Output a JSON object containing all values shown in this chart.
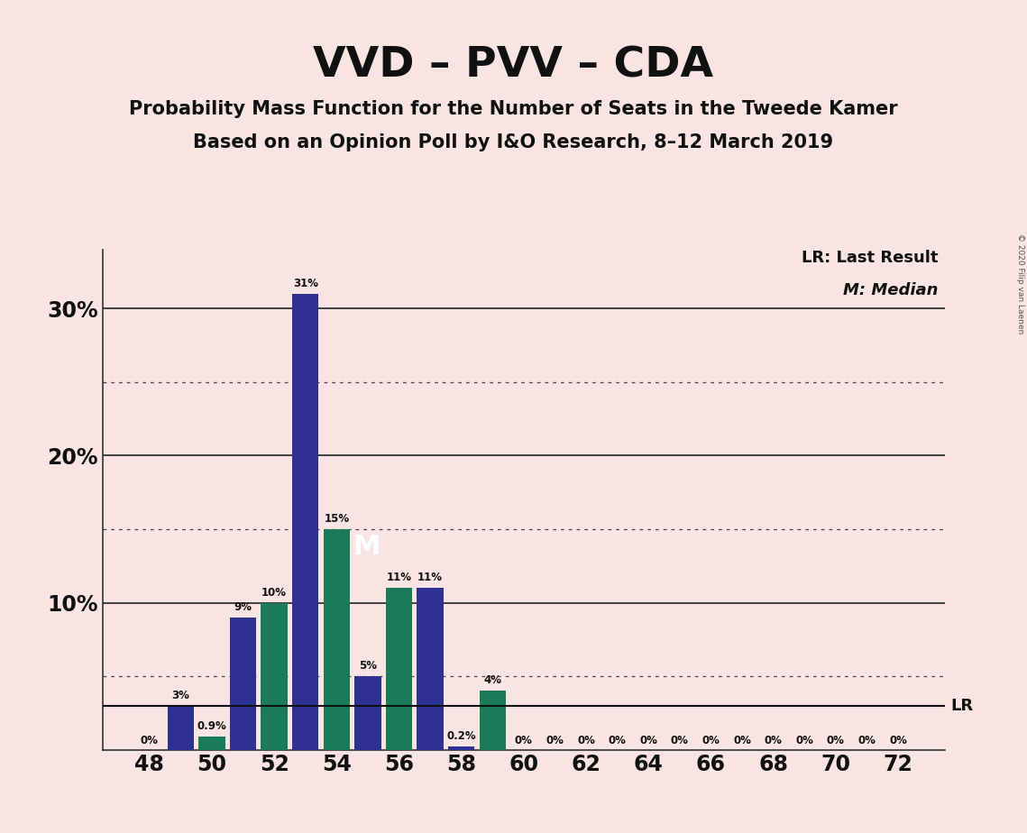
{
  "title": "VVD – PVV – CDA",
  "subtitle1": "Probability Mass Function for the Number of Seats in the Tweede Kamer",
  "subtitle2": "Based on an Opinion Poll by I&O Research, 8–12 March 2019",
  "copyright": "© 2020 Filip van Laenen",
  "background_color": "#f9e4e4",
  "bar_data": [
    {
      "seat": 48,
      "value": 0.0,
      "color": "#2e3191"
    },
    {
      "seat": 49,
      "value": 3.0,
      "color": "#2e3191"
    },
    {
      "seat": 50,
      "value": 0.9,
      "color": "#1b7a5a"
    },
    {
      "seat": 51,
      "value": 9.0,
      "color": "#2e3191"
    },
    {
      "seat": 52,
      "value": 10.0,
      "color": "#1b7a5a"
    },
    {
      "seat": 53,
      "value": 31.0,
      "color": "#2e3191"
    },
    {
      "seat": 54,
      "value": 15.0,
      "color": "#1b7a5a"
    },
    {
      "seat": 55,
      "value": 5.0,
      "color": "#2e3191"
    },
    {
      "seat": 56,
      "value": 11.0,
      "color": "#1b7a5a"
    },
    {
      "seat": 57,
      "value": 11.0,
      "color": "#2e3191"
    },
    {
      "seat": 58,
      "value": 0.2,
      "color": "#2e3191"
    },
    {
      "seat": 59,
      "value": 4.0,
      "color": "#1b7a5a"
    },
    {
      "seat": 60,
      "value": 0.0,
      "color": "#2e3191"
    },
    {
      "seat": 61,
      "value": 0.0,
      "color": "#2e3191"
    },
    {
      "seat": 62,
      "value": 0.0,
      "color": "#2e3191"
    },
    {
      "seat": 63,
      "value": 0.0,
      "color": "#2e3191"
    },
    {
      "seat": 64,
      "value": 0.0,
      "color": "#2e3191"
    },
    {
      "seat": 65,
      "value": 0.0,
      "color": "#2e3191"
    },
    {
      "seat": 66,
      "value": 0.0,
      "color": "#2e3191"
    },
    {
      "seat": 67,
      "value": 0.0,
      "color": "#2e3191"
    },
    {
      "seat": 68,
      "value": 0.0,
      "color": "#2e3191"
    },
    {
      "seat": 69,
      "value": 0.0,
      "color": "#2e3191"
    },
    {
      "seat": 70,
      "value": 0.0,
      "color": "#2e3191"
    },
    {
      "seat": 71,
      "value": 0.0,
      "color": "#2e3191"
    },
    {
      "seat": 72,
      "value": 0.0,
      "color": "#2e3191"
    }
  ],
  "bar_labels": {
    "48": "0%",
    "49": "3%",
    "50": "0.9%",
    "51": "9%",
    "52": "10%",
    "53": "31%",
    "54": "15%",
    "55": "5%",
    "56": "11%",
    "57": "11%",
    "58": "0.2%",
    "59": "4%",
    "60": "0%",
    "61": "0%",
    "62": "0%",
    "63": "0%",
    "64": "0%",
    "65": "0%",
    "66": "0%",
    "67": "0%",
    "68": "0%",
    "69": "0%",
    "70": "0%",
    "71": "0%",
    "72": "0%"
  },
  "median_seat": 54,
  "lr_value": 3.0,
  "yticks": [
    10,
    20,
    30
  ],
  "ytick_labels": [
    "10%",
    "20%",
    "30%"
  ],
  "dotted_lines": [
    5,
    15,
    25
  ],
  "xtick_positions": [
    48,
    50,
    52,
    54,
    56,
    58,
    60,
    62,
    64,
    66,
    68,
    70,
    72
  ],
  "xlim_left": 46.5,
  "xlim_right": 73.5,
  "ylim_top": 34,
  "bar_width": 0.85,
  "title_fontsize": 34,
  "subtitle_fontsize": 15
}
